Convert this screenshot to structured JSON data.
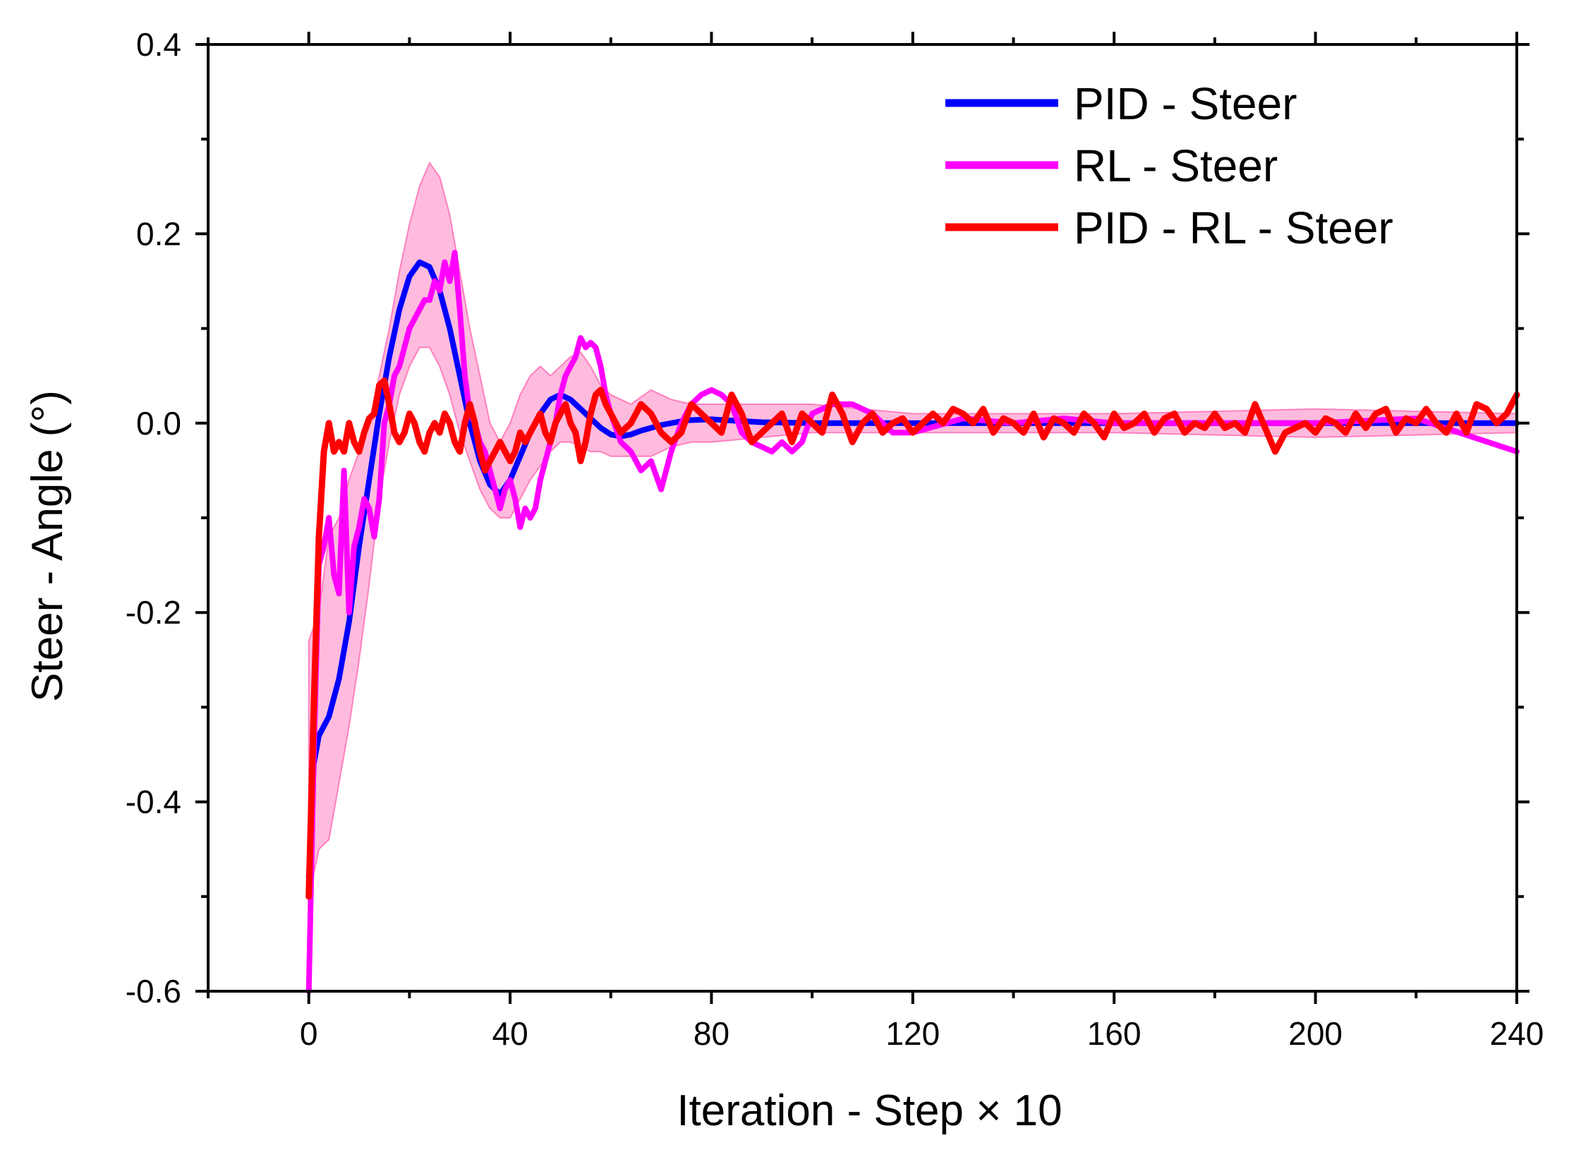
{
  "chart_data": {
    "type": "line",
    "title": "",
    "xlabel": "Iteration - Step × 10",
    "ylabel": "Steer - Angle (°)",
    "xlim": [
      -20,
      240
    ],
    "ylim": [
      -0.6,
      0.4
    ],
    "xticks": [
      0,
      40,
      80,
      120,
      160,
      200,
      240
    ],
    "xtick_labels": [
      "0",
      "40",
      "80",
      "120",
      "160",
      "200",
      "240"
    ],
    "yticks": [
      0.4,
      0.2,
      0.0,
      -0.2,
      -0.4,
      -0.6
    ],
    "ytick_labels": [
      "0.4",
      "0.2",
      "0.0",
      "-0.2",
      "-0.4",
      "-0.6"
    ],
    "legend_position": "top-right",
    "series": [
      {
        "name": "PID - Steer",
        "color": "#0000ff",
        "x": [
          0,
          1,
          2,
          4,
          6,
          8,
          10,
          12,
          14,
          16,
          18,
          20,
          22,
          24,
          26,
          28,
          30,
          32,
          34,
          36,
          38,
          40,
          42,
          44,
          46,
          48,
          50,
          52,
          54,
          56,
          58,
          60,
          62,
          64,
          66,
          70,
          75,
          80,
          90,
          100,
          120,
          160,
          200,
          240
        ],
        "y": [
          -0.48,
          -0.36,
          -0.33,
          -0.31,
          -0.27,
          -0.21,
          -0.13,
          -0.06,
          0.01,
          0.07,
          0.12,
          0.155,
          0.17,
          0.165,
          0.14,
          0.1,
          0.05,
          0.0,
          -0.04,
          -0.065,
          -0.075,
          -0.06,
          -0.035,
          -0.01,
          0.01,
          0.025,
          0.03,
          0.025,
          0.015,
          0.005,
          -0.005,
          -0.012,
          -0.014,
          -0.012,
          -0.008,
          -0.002,
          0.003,
          0.004,
          0.001,
          0.0,
          0.0,
          0.0,
          0.0,
          0.0
        ]
      },
      {
        "name": "RL - Steer",
        "color": "#ff00ff",
        "x": [
          0,
          1,
          2,
          3,
          4,
          5,
          6,
          7,
          8,
          9,
          10,
          11,
          12,
          13,
          14,
          15,
          16,
          17,
          18,
          19,
          20,
          21,
          22,
          23,
          24,
          25,
          26,
          27,
          28,
          29,
          30,
          31,
          32,
          33,
          34,
          35,
          36,
          37,
          38,
          39,
          40,
          41,
          42,
          43,
          44,
          45,
          46,
          47,
          48,
          49,
          50,
          51,
          52,
          53,
          54,
          55,
          56,
          57,
          58,
          59,
          60,
          62,
          64,
          66,
          68,
          70,
          72,
          74,
          76,
          78,
          80,
          82,
          84,
          86,
          88,
          90,
          92,
          94,
          96,
          98,
          100,
          104,
          108,
          112,
          116,
          120,
          130,
          140,
          150,
          160,
          180,
          200,
          220,
          240
        ],
        "y": [
          -0.6,
          -0.35,
          -0.15,
          -0.13,
          -0.1,
          -0.16,
          -0.18,
          -0.05,
          -0.2,
          -0.13,
          -0.11,
          -0.08,
          -0.09,
          -0.12,
          -0.08,
          0.0,
          0.02,
          0.05,
          0.06,
          0.08,
          0.1,
          0.11,
          0.12,
          0.13,
          0.13,
          0.15,
          0.14,
          0.17,
          0.15,
          0.18,
          0.12,
          0.05,
          0.01,
          0.0,
          -0.02,
          -0.03,
          -0.05,
          -0.07,
          -0.09,
          -0.07,
          -0.06,
          -0.08,
          -0.11,
          -0.09,
          -0.1,
          -0.09,
          -0.06,
          -0.04,
          -0.02,
          0.0,
          0.03,
          0.05,
          0.06,
          0.07,
          0.09,
          0.08,
          0.085,
          0.08,
          0.06,
          0.03,
          0.01,
          -0.02,
          -0.03,
          -0.05,
          -0.04,
          -0.07,
          -0.03,
          0.0,
          0.02,
          0.03,
          0.035,
          0.03,
          0.02,
          -0.01,
          -0.02,
          -0.025,
          -0.03,
          -0.02,
          -0.03,
          -0.02,
          0.01,
          0.02,
          0.02,
          0.01,
          -0.01,
          -0.01,
          0.005,
          0.0,
          0.005,
          0.0,
          0.0,
          0.0,
          0.005,
          -0.03
        ]
      },
      {
        "name": "PID - RL - Steer",
        "color": "#ff0000",
        "x": [
          0,
          1,
          2,
          3,
          4,
          5,
          6,
          7,
          8,
          9,
          10,
          11,
          12,
          13,
          14,
          15,
          16,
          17,
          18,
          19,
          20,
          21,
          22,
          23,
          24,
          25,
          26,
          27,
          28,
          29,
          30,
          31,
          32,
          33,
          34,
          35,
          36,
          37,
          38,
          39,
          40,
          41,
          42,
          43,
          44,
          45,
          46,
          47,
          48,
          49,
          50,
          51,
          52,
          53,
          54,
          55,
          56,
          57,
          58,
          59,
          60,
          62,
          64,
          66,
          68,
          70,
          72,
          74,
          76,
          78,
          80,
          82,
          84,
          86,
          88,
          90,
          92,
          94,
          96,
          98,
          100,
          102,
          104,
          106,
          108,
          110,
          112,
          114,
          116,
          118,
          120,
          122,
          124,
          126,
          128,
          130,
          132,
          134,
          136,
          138,
          140,
          142,
          144,
          146,
          148,
          150,
          152,
          154,
          156,
          158,
          160,
          162,
          164,
          166,
          168,
          170,
          172,
          174,
          176,
          178,
          180,
          182,
          184,
          186,
          188,
          190,
          192,
          194,
          196,
          198,
          200,
          202,
          204,
          206,
          208,
          210,
          212,
          214,
          216,
          218,
          220,
          222,
          224,
          226,
          228,
          230,
          232,
          234,
          236,
          238,
          240
        ],
        "y": [
          -0.5,
          -0.3,
          -0.12,
          -0.03,
          0.0,
          -0.03,
          -0.02,
          -0.03,
          0.0,
          -0.02,
          -0.03,
          -0.01,
          0.005,
          0.01,
          0.04,
          0.045,
          0.02,
          -0.01,
          -0.02,
          -0.01,
          0.01,
          0.0,
          -0.02,
          -0.03,
          -0.01,
          0.0,
          -0.01,
          0.01,
          0.0,
          -0.02,
          -0.03,
          0.0,
          0.02,
          0.0,
          -0.03,
          -0.05,
          -0.04,
          -0.03,
          -0.02,
          -0.03,
          -0.04,
          -0.03,
          -0.01,
          -0.02,
          -0.01,
          0.0,
          0.01,
          -0.01,
          -0.02,
          0.0,
          0.01,
          0.02,
          0.0,
          -0.01,
          -0.04,
          -0.02,
          0.01,
          0.03,
          0.035,
          0.02,
          0.01,
          -0.01,
          0.0,
          0.02,
          0.01,
          -0.01,
          -0.02,
          -0.01,
          0.02,
          0.01,
          0.0,
          -0.01,
          0.03,
          0.01,
          -0.02,
          -0.01,
          0.0,
          0.01,
          -0.02,
          0.01,
          0.0,
          -0.01,
          0.03,
          0.01,
          -0.02,
          0.0,
          0.01,
          -0.01,
          0.0,
          0.005,
          -0.01,
          0.0,
          0.01,
          0.0,
          0.015,
          0.01,
          0.0,
          0.015,
          -0.01,
          0.005,
          0.0,
          -0.01,
          0.01,
          -0.015,
          0.005,
          0.0,
          -0.01,
          0.01,
          0.0,
          -0.015,
          0.01,
          -0.005,
          0.0,
          0.01,
          -0.01,
          0.005,
          0.01,
          -0.01,
          0.0,
          -0.005,
          0.01,
          -0.005,
          0.0,
          -0.01,
          0.02,
          -0.005,
          -0.03,
          -0.01,
          -0.005,
          0.0,
          -0.01,
          0.005,
          0.0,
          -0.01,
          0.01,
          -0.005,
          0.01,
          0.015,
          -0.01,
          0.005,
          0.0,
          0.015,
          0.0,
          -0.01,
          0.01,
          -0.01,
          0.02,
          0.015,
          0.0,
          0.01,
          0.03
        ]
      }
    ],
    "confidence_band": {
      "series": "RL - Steer",
      "color": "#ff69b4",
      "x": [
        0,
        2,
        4,
        6,
        8,
        10,
        12,
        14,
        16,
        18,
        20,
        22,
        24,
        26,
        28,
        30,
        32,
        34,
        36,
        38,
        40,
        42,
        44,
        46,
        48,
        50,
        52,
        54,
        56,
        58,
        60,
        64,
        68,
        72,
        76,
        80,
        90,
        100,
        120,
        160,
        200,
        240
      ],
      "upper": [
        -0.23,
        -0.2,
        -0.12,
        -0.1,
        -0.06,
        -0.03,
        0.0,
        0.05,
        0.1,
        0.16,
        0.21,
        0.25,
        0.275,
        0.26,
        0.22,
        0.16,
        0.1,
        0.05,
        0.0,
        -0.02,
        0.0,
        0.03,
        0.05,
        0.06,
        0.05,
        0.06,
        0.07,
        0.075,
        0.06,
        0.04,
        0.03,
        0.02,
        0.035,
        0.025,
        0.02,
        0.02,
        0.02,
        0.02,
        0.01,
        0.01,
        0.015,
        0.01
      ],
      "lower": [
        -0.5,
        -0.45,
        -0.44,
        -0.38,
        -0.32,
        -0.25,
        -0.17,
        -0.08,
        -0.02,
        0.03,
        0.06,
        0.08,
        0.08,
        0.06,
        0.03,
        -0.01,
        -0.04,
        -0.07,
        -0.09,
        -0.1,
        -0.1,
        -0.08,
        -0.06,
        -0.045,
        -0.03,
        -0.02,
        -0.02,
        -0.025,
        -0.03,
        -0.03,
        -0.035,
        -0.035,
        -0.035,
        -0.025,
        -0.02,
        -0.02,
        -0.015,
        -0.01,
        -0.01,
        -0.01,
        -0.015,
        -0.01
      ]
    }
  }
}
